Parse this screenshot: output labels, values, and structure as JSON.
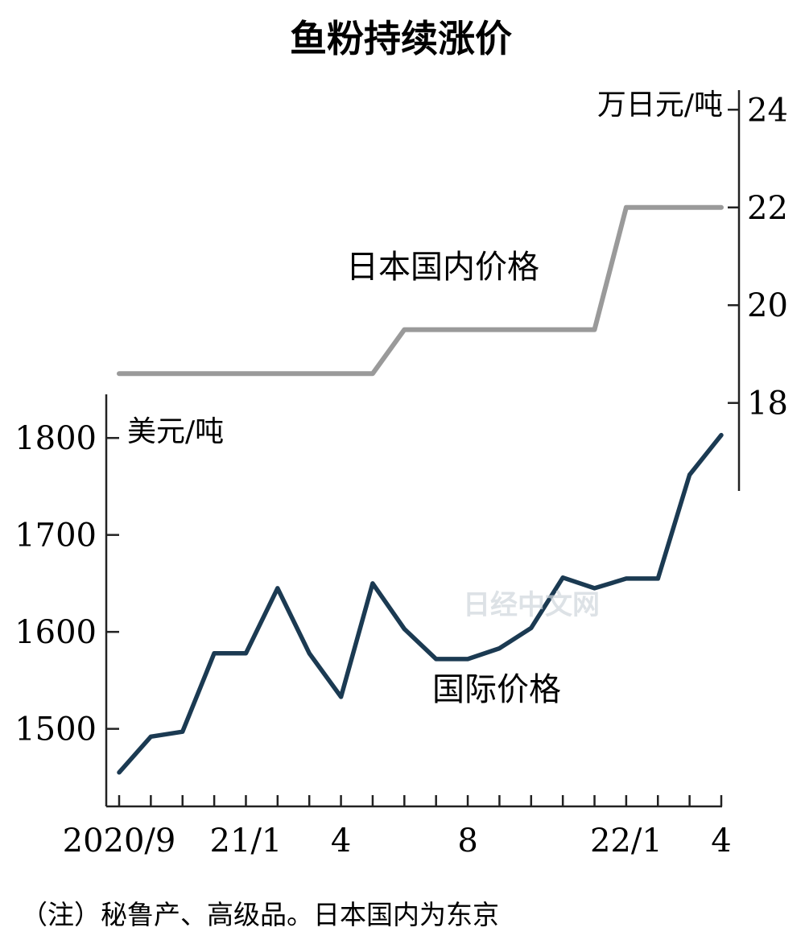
{
  "chart_data": {
    "type": "line",
    "title": "鱼粉持续涨价",
    "note": "（注）秘鲁产、高级品。日本国内为东京",
    "x_tick_labels": [
      "2020/9",
      "21/1",
      "4",
      "8",
      "22/1",
      "4"
    ],
    "periods": [
      "2020/9",
      "2020/10",
      "2020/11",
      "2020/12",
      "2021/1",
      "2021/2",
      "2021/3",
      "2021/4",
      "2021/5",
      "2021/6",
      "2021/7",
      "2021/8",
      "2021/9",
      "2021/10",
      "2021/11",
      "2021/12",
      "2022/1",
      "2022/2",
      "2022/3",
      "2022/4"
    ],
    "left_axis": {
      "unit": "美元/吨",
      "ticks": [
        1500,
        1600,
        1700,
        1800
      ],
      "range": [
        1420,
        1845
      ]
    },
    "right_axis": {
      "unit": "万日元/吨",
      "ticks": [
        18,
        20,
        22,
        24
      ],
      "range": [
        16.2,
        24.4
      ]
    },
    "series": [
      {
        "name": "国际价格",
        "axis": "left",
        "color": "#1b3a52",
        "values": [
          1455,
          1492,
          1497,
          1578,
          1578,
          1645,
          1578,
          1533,
          1650,
          1603,
          1572,
          1572,
          1583,
          1604,
          1656,
          1645,
          1655,
          1655,
          1762,
          1803
        ]
      },
      {
        "name": "日本国内价格",
        "axis": "right",
        "color": "#9a9a9a",
        "values": [
          18.6,
          18.6,
          18.6,
          18.6,
          18.6,
          18.6,
          18.6,
          18.6,
          18.6,
          19.5,
          19.5,
          19.5,
          19.5,
          19.5,
          19.5,
          19.5,
          22.0,
          22.0,
          22.0,
          22.0
        ]
      }
    ],
    "grid": false,
    "legend": "none"
  },
  "watermark": {
    "text": "日经中文网"
  }
}
